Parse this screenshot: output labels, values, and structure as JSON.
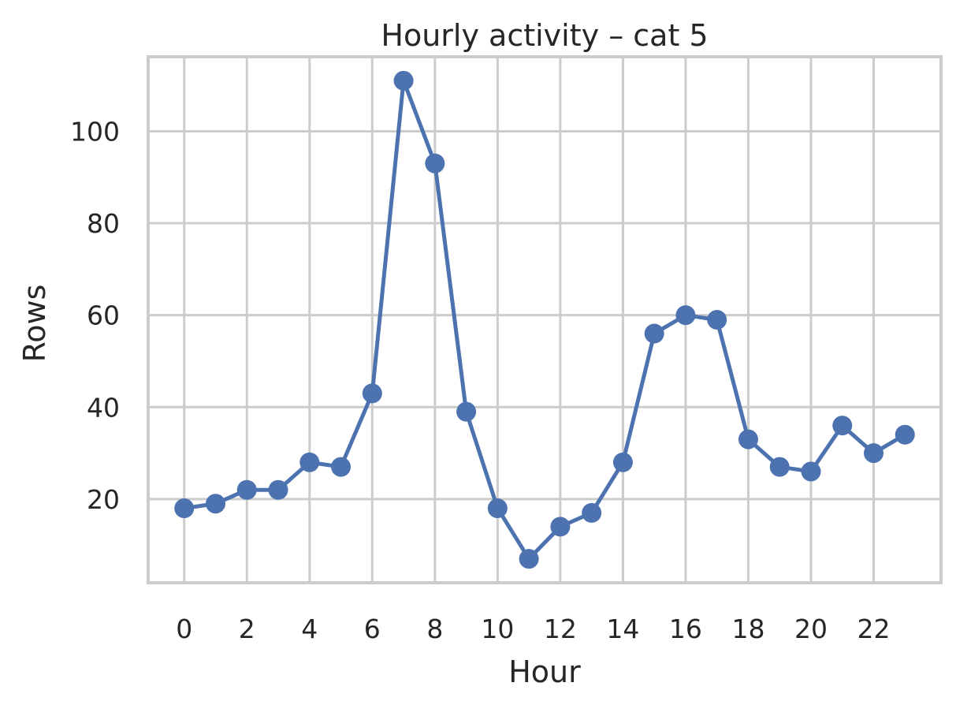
{
  "chart_data": {
    "type": "line",
    "title": "Hourly activity – cat 5",
    "xlabel": "Hour",
    "ylabel": "Rows",
    "x": [
      0,
      1,
      2,
      3,
      4,
      5,
      6,
      7,
      8,
      9,
      10,
      11,
      12,
      13,
      14,
      15,
      16,
      17,
      18,
      19,
      20,
      21,
      22,
      23
    ],
    "series": [
      {
        "values": [
          18,
          19,
          22,
          22,
          28,
          27,
          43,
          111,
          93,
          39,
          18,
          7,
          14,
          17,
          28,
          56,
          60,
          59,
          33,
          27,
          26,
          36,
          30,
          34
        ]
      }
    ],
    "xticks": [
      "0",
      "2",
      "4",
      "6",
      "8",
      "10",
      "12",
      "14",
      "16",
      "18",
      "20",
      "22"
    ],
    "yticks": [
      "20",
      "40",
      "60",
      "80",
      "100"
    ],
    "xlim": [
      -1.15,
      24.15
    ],
    "ylim": [
      1.8,
      116.2
    ],
    "grid": true,
    "colors": {
      "line": "#4c72b0",
      "grid": "#cccccc",
      "text": "#262626"
    }
  }
}
